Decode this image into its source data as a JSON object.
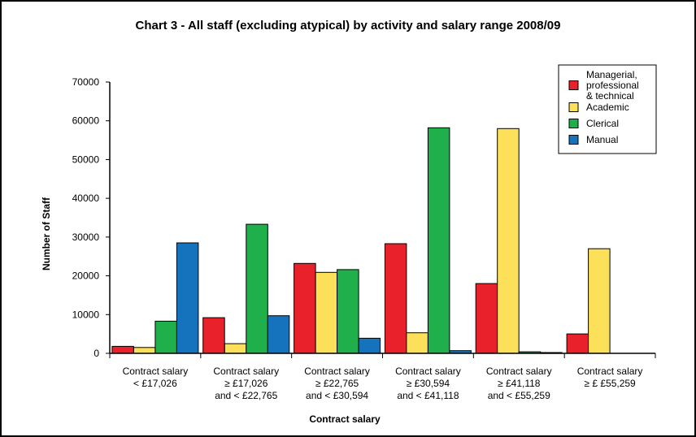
{
  "chart_data": {
    "type": "bar",
    "title": "Chart 3 - All staff (excluding atypical) by activity and salary range 2008/09",
    "xlabel": "Contract salary",
    "ylabel": "Number of Staff",
    "ylim": [
      0,
      70000
    ],
    "yticks": [
      0,
      10000,
      20000,
      30000,
      40000,
      50000,
      60000,
      70000
    ],
    "legend_position": "top-right",
    "grid": false,
    "categories": [
      [
        "Contract salary",
        "< £17,026"
      ],
      [
        "Contract salary",
        "≥ £17,026",
        "and < £22,765"
      ],
      [
        "Contract salary",
        "≥ £22,765",
        "and < £30,594"
      ],
      [
        "Contract salary",
        "≥ £30,594",
        "and < £41,118"
      ],
      [
        "Contract salary",
        "≥ £41,118",
        "and < £55,259"
      ],
      [
        "Contract salary",
        "≥ £ £55,259"
      ]
    ],
    "series": [
      {
        "name": [
          "Managerial,",
          "professional",
          "& technical"
        ],
        "color": "#e8212b",
        "values": [
          1800,
          9200,
          23200,
          28300,
          18000,
          5000
        ]
      },
      {
        "name": [
          "Academic"
        ],
        "color": "#fde05a",
        "values": [
          1500,
          2500,
          20900,
          5300,
          58000,
          27000
        ]
      },
      {
        "name": [
          "Clerical"
        ],
        "color": "#1fb04b",
        "values": [
          8300,
          33300,
          21600,
          58200,
          400,
          0
        ]
      },
      {
        "name": [
          "Manual"
        ],
        "color": "#1573bd",
        "values": [
          28500,
          9700,
          3900,
          700,
          200,
          0
        ]
      }
    ]
  }
}
